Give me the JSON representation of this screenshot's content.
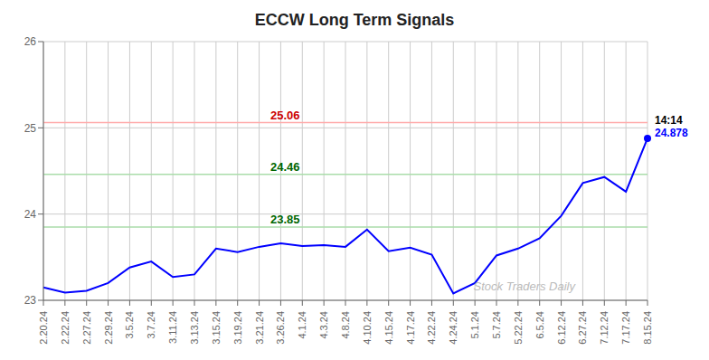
{
  "chart_data": {
    "type": "line",
    "title": "ECCW Long Term Signals",
    "categories": [
      "2.20.24",
      "2.22.24",
      "2.27.24",
      "2.29.24",
      "3.5.24",
      "3.7.24",
      "3.11.24",
      "3.13.24",
      "3.15.24",
      "3.19.24",
      "3.21.24",
      "3.26.24",
      "4.1.24",
      "4.3.24",
      "4.8.24",
      "4.10.24",
      "4.15.24",
      "4.17.24",
      "4.22.24",
      "4.24.24",
      "5.1.24",
      "5.7.24",
      "5.22.24",
      "6.5.24",
      "6.12.24",
      "6.27.24",
      "7.12.24",
      "7.17.24",
      "8.15.24"
    ],
    "values": [
      23.15,
      23.09,
      23.11,
      23.2,
      23.38,
      23.45,
      23.27,
      23.3,
      23.6,
      23.56,
      23.62,
      23.66,
      23.63,
      23.64,
      23.62,
      23.82,
      23.57,
      23.61,
      23.53,
      23.08,
      23.2,
      23.52,
      23.6,
      23.72,
      23.98,
      24.36,
      24.43,
      24.26,
      24.878
    ],
    "color": "blue",
    "ylim": [
      23,
      26
    ],
    "yticks": [
      23,
      24,
      25,
      26
    ],
    "grid": true,
    "grid_color": "#cccccc",
    "reference_lines": [
      {
        "value": 25.06,
        "color": "#ffaaaa",
        "label": "25.06",
        "label_color": "#cc0000"
      },
      {
        "value": 24.46,
        "color": "#aaddaa",
        "label": "24.46",
        "label_color": "#006600"
      },
      {
        "value": 23.85,
        "color": "#aaddaa",
        "label": "23.85",
        "label_color": "#006600"
      }
    ],
    "annotations": [
      {
        "text": "14:14",
        "color": "black"
      },
      {
        "text": "24.878",
        "color": "blue"
      }
    ],
    "watermark": {
      "text": "Stock Traders Daily",
      "color": "#bbbbbb"
    }
  }
}
